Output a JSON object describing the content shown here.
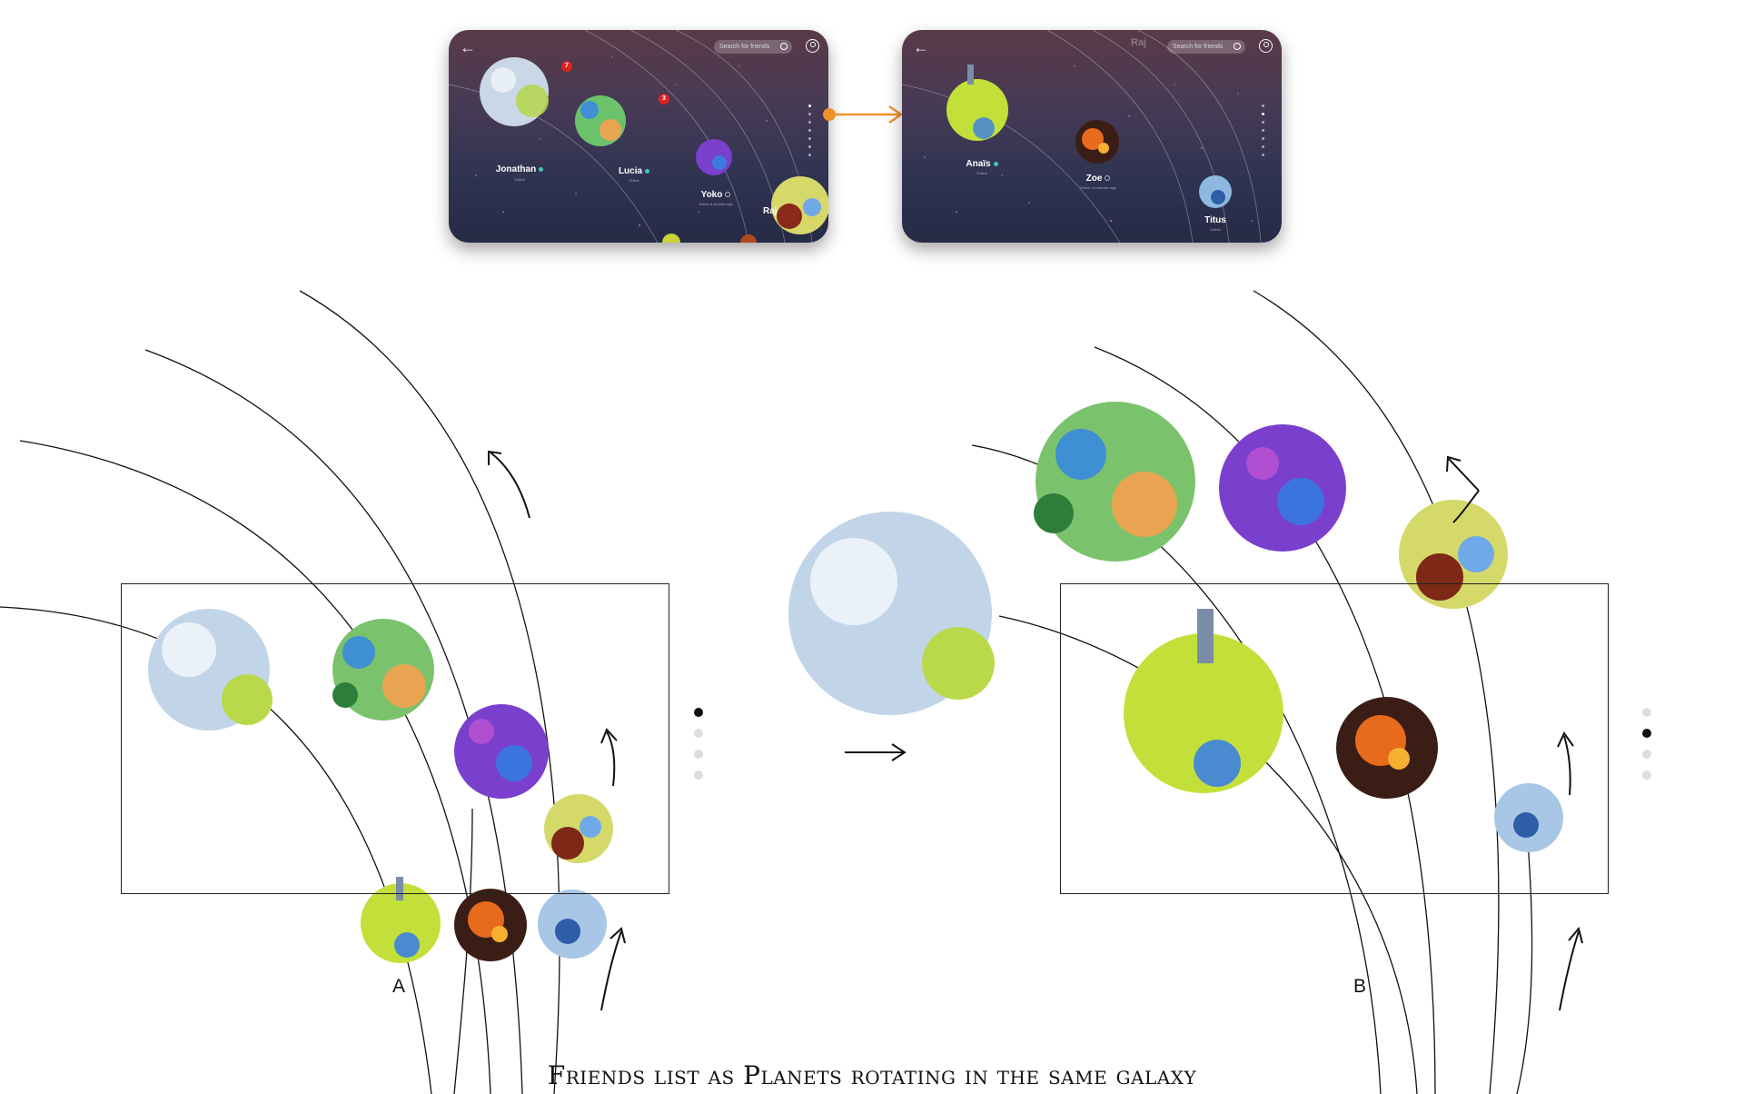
{
  "caption": "Friends list as Planets rotating in the same galaxy",
  "diagram_labels": {
    "a": "A",
    "b": "B"
  },
  "screen_a": {
    "search_placeholder": "Search for friends",
    "friends": [
      {
        "name": "Jonathan",
        "status": "Online",
        "badge": "7",
        "online": true
      },
      {
        "name": "Lucia",
        "status": "Online",
        "badge": "3",
        "online": true
      },
      {
        "name": "Yoko",
        "status": "Online 8 minutes ago",
        "online": false
      },
      {
        "name": "Raj"
      }
    ],
    "page_dots": 7,
    "active_dot": 0
  },
  "screen_b": {
    "search_placeholder": "Search for friends",
    "ghost_name": "Raj",
    "friends": [
      {
        "name": "Anaïs",
        "status": "Online",
        "online": true
      },
      {
        "name": "Zoe",
        "status": "Online 15 minutes ago",
        "online": false
      },
      {
        "name": "Titus",
        "status": "Online"
      }
    ],
    "page_dots": 7,
    "active_dot": 1
  },
  "diagram_a_dots": {
    "count": 4,
    "active": 0
  },
  "diagram_b_dots": {
    "count": 4,
    "active": 1
  },
  "colors": {
    "transition_arrow": "#f0922b",
    "badge": "#e0221f",
    "online": "#3fc9b9"
  }
}
